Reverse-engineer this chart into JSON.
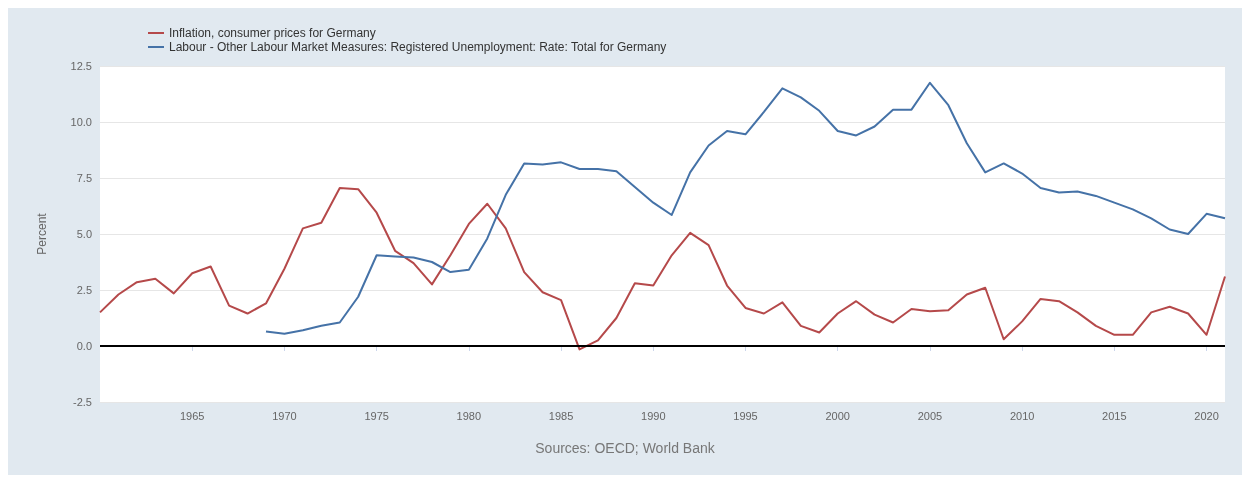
{
  "chart_data": {
    "type": "line",
    "ylabel": "Percent",
    "annotations": [
      "Sources: OECD; World Bank"
    ],
    "xlim": [
      1960,
      2021
    ],
    "xticks": [
      1965,
      1970,
      1975,
      1980,
      1985,
      1990,
      1995,
      2000,
      2005,
      2010,
      2015,
      2020
    ],
    "ylim": [
      -2.5,
      12.5
    ],
    "yticks": [
      {
        "value": -2.5,
        "label": "-2.5"
      },
      {
        "value": 0,
        "label": "0.0"
      },
      {
        "value": 2.5,
        "label": "2.5"
      },
      {
        "value": 5,
        "label": "5.0"
      },
      {
        "value": 7.5,
        "label": "7.5"
      },
      {
        "value": 10,
        "label": "10.0"
      },
      {
        "value": 12.5,
        "label": "12.5"
      }
    ],
    "grid": "y",
    "legend": "top left",
    "marker": "none",
    "line_style": "solid",
    "ref_lines": [
      {
        "axis": "y",
        "value": 0,
        "label": null,
        "color": "#000000"
      }
    ],
    "series": [
      {
        "name": "Inflation, consumer prices for Germany",
        "color": "#b5494a",
        "x": [
          1960,
          1961,
          1962,
          1963,
          1964,
          1965,
          1966,
          1967,
          1968,
          1969,
          1970,
          1971,
          1972,
          1973,
          1974,
          1975,
          1976,
          1977,
          1978,
          1979,
          1980,
          1981,
          1982,
          1983,
          1984,
          1985,
          1986,
          1987,
          1988,
          1989,
          1990,
          1991,
          1992,
          1993,
          1994,
          1995,
          1996,
          1997,
          1998,
          1999,
          2000,
          2001,
          2002,
          2003,
          2004,
          2005,
          2006,
          2007,
          2008,
          2009,
          2010,
          2011,
          2012,
          2013,
          2014,
          2015,
          2016,
          2017,
          2018,
          2019,
          2020,
          2021
        ],
        "values": [
          1.5,
          2.3,
          2.85,
          3.0,
          2.35,
          3.25,
          3.55,
          1.8,
          1.45,
          1.9,
          3.45,
          5.25,
          5.5,
          7.05,
          7.0,
          5.95,
          4.25,
          3.7,
          2.75,
          4.05,
          5.45,
          6.35,
          5.25,
          3.3,
          2.4,
          2.05,
          -0.15,
          0.25,
          1.25,
          2.8,
          2.7,
          4.05,
          5.05,
          4.5,
          2.7,
          1.7,
          1.45,
          1.95,
          0.9,
          0.6,
          1.45,
          2.0,
          1.4,
          1.05,
          1.65,
          1.55,
          1.6,
          2.3,
          2.6,
          0.3,
          1.1,
          2.1,
          2.0,
          1.5,
          0.9,
          0.5,
          0.5,
          1.5,
          1.75,
          1.45,
          0.5,
          3.1
        ]
      },
      {
        "name": "Labour - Other Labour Market Measures: Registered Unemployment: Rate: Total for Germany",
        "color": "#4572a7",
        "x": [
          1969,
          1970,
          1971,
          1972,
          1973,
          1974,
          1975,
          1976,
          1977,
          1978,
          1979,
          1980,
          1981,
          1982,
          1983,
          1984,
          1985,
          1986,
          1987,
          1988,
          1989,
          1990,
          1991,
          1992,
          1993,
          1994,
          1995,
          1996,
          1997,
          1998,
          1999,
          2000,
          2001,
          2002,
          2003,
          2004,
          2005,
          2006,
          2007,
          2008,
          2009,
          2010,
          2011,
          2012,
          2013,
          2014,
          2015,
          2016,
          2017,
          2018,
          2019,
          2020,
          2021
        ],
        "values": [
          0.65,
          0.55,
          0.7,
          0.9,
          1.05,
          2.2,
          4.05,
          4.0,
          3.95,
          3.75,
          3.3,
          3.4,
          4.8,
          6.75,
          8.15,
          8.1,
          8.2,
          7.9,
          7.9,
          7.8,
          7.1,
          6.4,
          5.85,
          7.75,
          8.95,
          9.6,
          9.45,
          10.45,
          11.5,
          11.1,
          10.5,
          9.6,
          9.4,
          9.8,
          10.55,
          10.55,
          11.75,
          10.75,
          9.05,
          7.75,
          8.15,
          7.7,
          7.05,
          6.85,
          6.9,
          6.7,
          6.4,
          6.1,
          5.7,
          5.2,
          5.0,
          5.9,
          5.7
        ]
      }
    ]
  }
}
